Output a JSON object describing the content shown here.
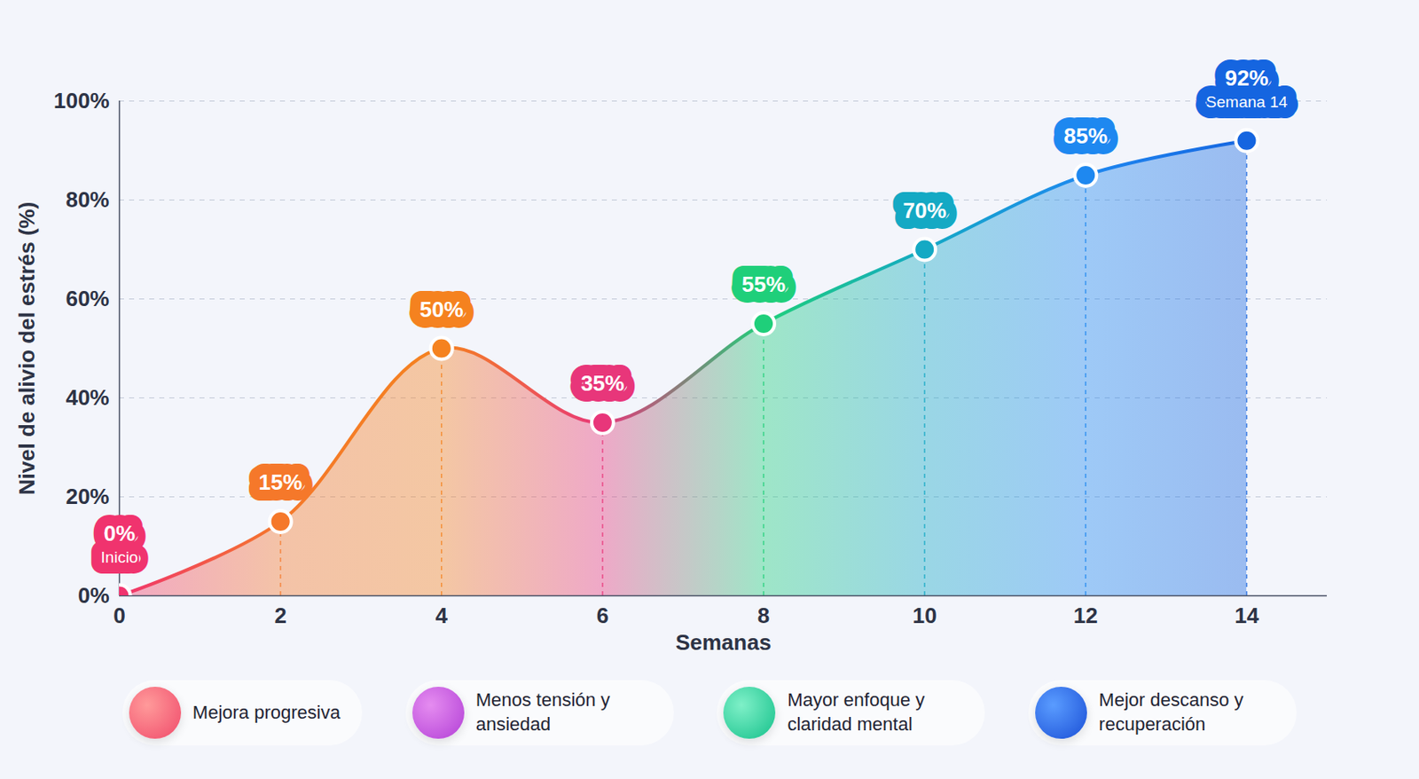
{
  "chart_data": {
    "type": "line",
    "x_label": "Semanas",
    "y_label": "Nivel de alivio del estrés (%)",
    "x": [
      0,
      2,
      4,
      6,
      8,
      10,
      12,
      14
    ],
    "values": [
      0,
      15,
      50,
      35,
      55,
      70,
      85,
      92
    ],
    "value_labels": [
      "0%",
      "15%",
      "50%",
      "35%",
      "55%",
      "70%",
      "85%",
      "92%"
    ],
    "colors": [
      "#f0336e",
      "#f5782a",
      "#f5821f",
      "#e8367a",
      "#1fcf7a",
      "#14a9c4",
      "#1e88f0",
      "#1565e0"
    ],
    "data_labels": true,
    "marker": "circle",
    "xlim": [
      0,
      15
    ],
    "ylim": [
      0,
      100
    ],
    "xticks": [
      0,
      2,
      4,
      6,
      8,
      10,
      12,
      14
    ],
    "yticks": [
      {
        "value": 0,
        "label": "0%"
      },
      {
        "value": 20,
        "label": "20%"
      },
      {
        "value": 40,
        "label": "40%"
      },
      {
        "value": 60,
        "label": "60%"
      },
      {
        "value": 80,
        "label": "80%"
      },
      {
        "value": 100,
        "label": "100%"
      }
    ],
    "grid": true,
    "annotations": [
      {
        "x": 0,
        "text": "Inicio"
      },
      {
        "x": 14,
        "text": "Semana 14"
      }
    ],
    "footer": [
      "Mejora progresiva",
      "Menos tensión y ansiedad",
      "Mayor enfoque y claridad mental",
      "Mejor descanso y recuperación"
    ]
  }
}
